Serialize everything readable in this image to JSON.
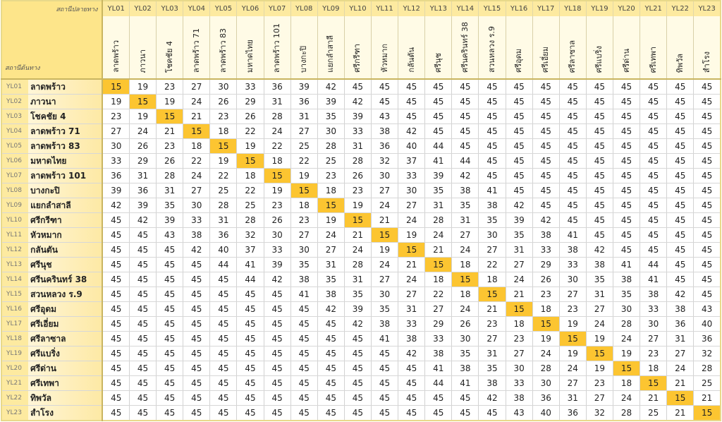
{
  "header": {
    "destination_label": "สถานีปลายทาง",
    "origin_label": "สถานีต้นทาง"
  },
  "stations": [
    {
      "code": "YL01",
      "name": "ลาดพร้าว"
    },
    {
      "code": "YL02",
      "name": "ภาวนา"
    },
    {
      "code": "YL03",
      "name": "โชคชัย 4"
    },
    {
      "code": "YL04",
      "name": "ลาดพร้าว 71"
    },
    {
      "code": "YL05",
      "name": "ลาดพร้าว 83"
    },
    {
      "code": "YL06",
      "name": "มหาดไทย"
    },
    {
      "code": "YL07",
      "name": "ลาดพร้าว 101"
    },
    {
      "code": "YL08",
      "name": "บางกะปิ"
    },
    {
      "code": "YL09",
      "name": "แยกลำสาลี"
    },
    {
      "code": "YL10",
      "name": "ศรีกรีฑา"
    },
    {
      "code": "YL11",
      "name": "หัวหมาก"
    },
    {
      "code": "YL12",
      "name": "กลันตัน"
    },
    {
      "code": "YL13",
      "name": "ศรีนุช"
    },
    {
      "code": "YL14",
      "name": "ศรีนครินทร์ 38"
    },
    {
      "code": "YL15",
      "name": "สวนหลวง ร.9"
    },
    {
      "code": "YL16",
      "name": "ศรีอุดม"
    },
    {
      "code": "YL17",
      "name": "ศรีเอี่ยม"
    },
    {
      "code": "YL18",
      "name": "ศรีลาซาล"
    },
    {
      "code": "YL19",
      "name": "ศรีแบริ่ง"
    },
    {
      "code": "YL20",
      "name": "ศรีด่าน"
    },
    {
      "code": "YL21",
      "name": "ศรีเทพา"
    },
    {
      "code": "YL22",
      "name": "ทิพวัล"
    },
    {
      "code": "YL23",
      "name": "สำโรง"
    }
  ],
  "fares": [
    [
      15,
      19,
      23,
      27,
      30,
      33,
      36,
      39,
      42,
      45,
      45,
      45,
      45,
      45,
      45,
      45,
      45,
      45,
      45,
      45,
      45,
      45,
      45
    ],
    [
      19,
      15,
      19,
      24,
      26,
      29,
      31,
      36,
      39,
      42,
      45,
      45,
      45,
      45,
      45,
      45,
      45,
      45,
      45,
      45,
      45,
      45,
      45
    ],
    [
      23,
      19,
      15,
      21,
      23,
      26,
      28,
      31,
      35,
      39,
      43,
      45,
      45,
      45,
      45,
      45,
      45,
      45,
      45,
      45,
      45,
      45,
      45
    ],
    [
      27,
      24,
      21,
      15,
      18,
      22,
      24,
      27,
      30,
      33,
      38,
      42,
      45,
      45,
      45,
      45,
      45,
      45,
      45,
      45,
      45,
      45,
      45
    ],
    [
      30,
      26,
      23,
      18,
      15,
      19,
      22,
      25,
      28,
      31,
      36,
      40,
      44,
      45,
      45,
      45,
      45,
      45,
      45,
      45,
      45,
      45,
      45
    ],
    [
      33,
      29,
      26,
      22,
      19,
      15,
      18,
      22,
      25,
      28,
      32,
      37,
      41,
      44,
      45,
      45,
      45,
      45,
      45,
      45,
      45,
      45,
      45
    ],
    [
      36,
      31,
      28,
      24,
      22,
      18,
      15,
      19,
      23,
      26,
      30,
      33,
      39,
      42,
      45,
      45,
      45,
      45,
      45,
      45,
      45,
      45,
      45
    ],
    [
      39,
      36,
      31,
      27,
      25,
      22,
      19,
      15,
      18,
      23,
      27,
      30,
      35,
      38,
      41,
      45,
      45,
      45,
      45,
      45,
      45,
      45,
      45
    ],
    [
      42,
      39,
      35,
      30,
      28,
      25,
      23,
      18,
      15,
      19,
      24,
      27,
      31,
      35,
      38,
      42,
      45,
      45,
      45,
      45,
      45,
      45,
      45
    ],
    [
      45,
      42,
      39,
      33,
      31,
      28,
      26,
      23,
      19,
      15,
      21,
      24,
      28,
      31,
      35,
      39,
      42,
      45,
      45,
      45,
      45,
      45,
      45
    ],
    [
      45,
      45,
      43,
      38,
      36,
      32,
      30,
      27,
      24,
      21,
      15,
      19,
      24,
      27,
      30,
      35,
      38,
      41,
      45,
      45,
      45,
      45,
      45
    ],
    [
      45,
      45,
      45,
      42,
      40,
      37,
      33,
      30,
      27,
      24,
      19,
      15,
      21,
      24,
      27,
      31,
      33,
      38,
      42,
      45,
      45,
      45,
      45
    ],
    [
      45,
      45,
      45,
      45,
      44,
      41,
      39,
      35,
      31,
      28,
      24,
      21,
      15,
      18,
      22,
      27,
      29,
      33,
      38,
      41,
      44,
      45,
      45
    ],
    [
      45,
      45,
      45,
      45,
      45,
      44,
      42,
      38,
      35,
      31,
      27,
      24,
      18,
      15,
      18,
      24,
      26,
      30,
      35,
      38,
      41,
      45,
      45
    ],
    [
      45,
      45,
      45,
      45,
      45,
      45,
      45,
      41,
      38,
      35,
      30,
      27,
      22,
      18,
      15,
      21,
      23,
      27,
      31,
      35,
      38,
      42,
      45
    ],
    [
      45,
      45,
      45,
      45,
      45,
      45,
      45,
      45,
      42,
      39,
      35,
      31,
      27,
      24,
      21,
      15,
      18,
      23,
      27,
      30,
      33,
      38,
      43
    ],
    [
      45,
      45,
      45,
      45,
      45,
      45,
      45,
      45,
      45,
      42,
      38,
      33,
      29,
      26,
      23,
      18,
      15,
      19,
      24,
      28,
      30,
      36,
      40
    ],
    [
      45,
      45,
      45,
      45,
      45,
      45,
      45,
      45,
      45,
      45,
      41,
      38,
      33,
      30,
      27,
      23,
      19,
      15,
      19,
      24,
      27,
      31,
      36
    ],
    [
      45,
      45,
      45,
      45,
      45,
      45,
      45,
      45,
      45,
      45,
      45,
      42,
      38,
      35,
      31,
      27,
      24,
      19,
      15,
      19,
      23,
      27,
      32
    ],
    [
      45,
      45,
      45,
      45,
      45,
      45,
      45,
      45,
      45,
      45,
      45,
      45,
      41,
      38,
      35,
      30,
      28,
      24,
      19,
      15,
      18,
      24,
      28
    ],
    [
      45,
      45,
      45,
      45,
      45,
      45,
      45,
      45,
      45,
      45,
      45,
      45,
      44,
      41,
      38,
      33,
      30,
      27,
      23,
      18,
      15,
      21,
      25
    ],
    [
      45,
      45,
      45,
      45,
      45,
      45,
      45,
      45,
      45,
      45,
      45,
      45,
      45,
      45,
      42,
      38,
      36,
      31,
      27,
      24,
      21,
      15,
      21
    ],
    [
      45,
      45,
      45,
      45,
      45,
      45,
      45,
      45,
      45,
      45,
      45,
      45,
      45,
      45,
      45,
      43,
      40,
      36,
      32,
      28,
      25,
      21,
      15
    ]
  ],
  "colors": {
    "diagonal": "#fcc531",
    "header": "#fde58a"
  }
}
